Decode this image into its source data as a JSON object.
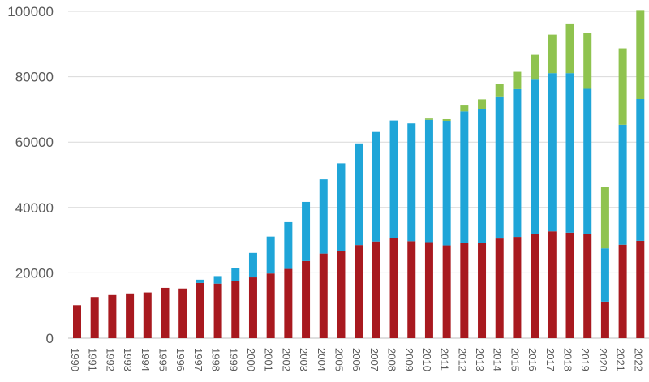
{
  "chart_data": {
    "type": "bar",
    "stacked": true,
    "title": "",
    "xlabel": "",
    "ylabel": "",
    "ylim": [
      0,
      100000
    ],
    "yticks": [
      0,
      20000,
      40000,
      60000,
      80000,
      100000
    ],
    "ytick_labels": [
      "0",
      "20000",
      "40000",
      "60000",
      "80000",
      "100000"
    ],
    "grid": "horizontal",
    "legend": "none",
    "categories": [
      "1990",
      "1991",
      "1992",
      "1993",
      "1994",
      "1995",
      "1996",
      "1997",
      "1998",
      "1999",
      "2000",
      "2001",
      "2002",
      "2003",
      "2004",
      "2005",
      "2006",
      "2007",
      "2008",
      "2009",
      "2010",
      "2011",
      "2012",
      "2013",
      "2014",
      "2015",
      "2016",
      "2017",
      "2018",
      "2019",
      "2020",
      "2021",
      "2022"
    ],
    "series": [
      {
        "color": "#a8191f",
        "values": [
          10100,
          12600,
          13200,
          13700,
          14000,
          15400,
          15200,
          16900,
          16700,
          17400,
          18600,
          19800,
          21200,
          23600,
          25900,
          26700,
          28500,
          29600,
          30600,
          29700,
          29400,
          28400,
          29100,
          29200,
          30500,
          31000,
          31900,
          32700,
          32300,
          31800,
          11200,
          28600,
          29800
        ]
      },
      {
        "color": "#1fa5d8",
        "values": [
          0,
          0,
          0,
          0,
          0,
          0,
          0,
          1000,
          2300,
          4100,
          7500,
          11300,
          14300,
          18100,
          22700,
          26800,
          31100,
          33500,
          36000,
          36000,
          37400,
          38100,
          40300,
          41000,
          43500,
          45200,
          47200,
          48400,
          48800,
          44500,
          16300,
          36700,
          43400
        ]
      },
      {
        "color": "#8fc34f",
        "values": [
          0,
          0,
          0,
          0,
          0,
          0,
          0,
          0,
          0,
          0,
          0,
          0,
          0,
          0,
          0,
          0,
          0,
          0,
          0,
          0,
          400,
          500,
          1800,
          2900,
          3700,
          5300,
          7600,
          11800,
          15200,
          17000,
          18800,
          23400,
          27200
        ]
      }
    ]
  }
}
